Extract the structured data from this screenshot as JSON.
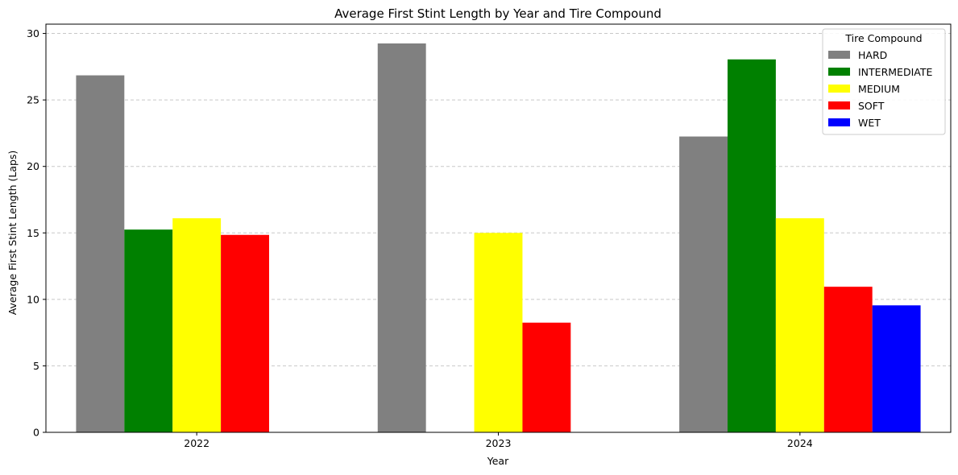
{
  "chart_data": {
    "type": "bar",
    "title": "Average First Stint Length by Year and Tire Compound",
    "xlabel": "Year",
    "ylabel": "Average First Stint Length (Laps)",
    "categories": [
      "2022",
      "2023",
      "2024"
    ],
    "ylim": [
      0,
      30.7
    ],
    "yticks": [
      0,
      5,
      10,
      15,
      20,
      25,
      30
    ],
    "grid": "y-dashed",
    "legend": {
      "title": "Tire Compound",
      "placement": "top-right"
    },
    "series": [
      {
        "name": "HARD",
        "color": "#808080",
        "values": [
          26.85,
          29.25,
          22.25
        ]
      },
      {
        "name": "INTERMEDIATE",
        "color": "#008000",
        "values": [
          15.25,
          null,
          28.05
        ]
      },
      {
        "name": "MEDIUM",
        "color": "#ffff00",
        "values": [
          16.1,
          15.0,
          16.1
        ]
      },
      {
        "name": "SOFT",
        "color": "#ff0000",
        "values": [
          14.85,
          8.25,
          10.95
        ]
      },
      {
        "name": "WET",
        "color": "#0000ff",
        "values": [
          null,
          null,
          9.55
        ]
      }
    ]
  }
}
